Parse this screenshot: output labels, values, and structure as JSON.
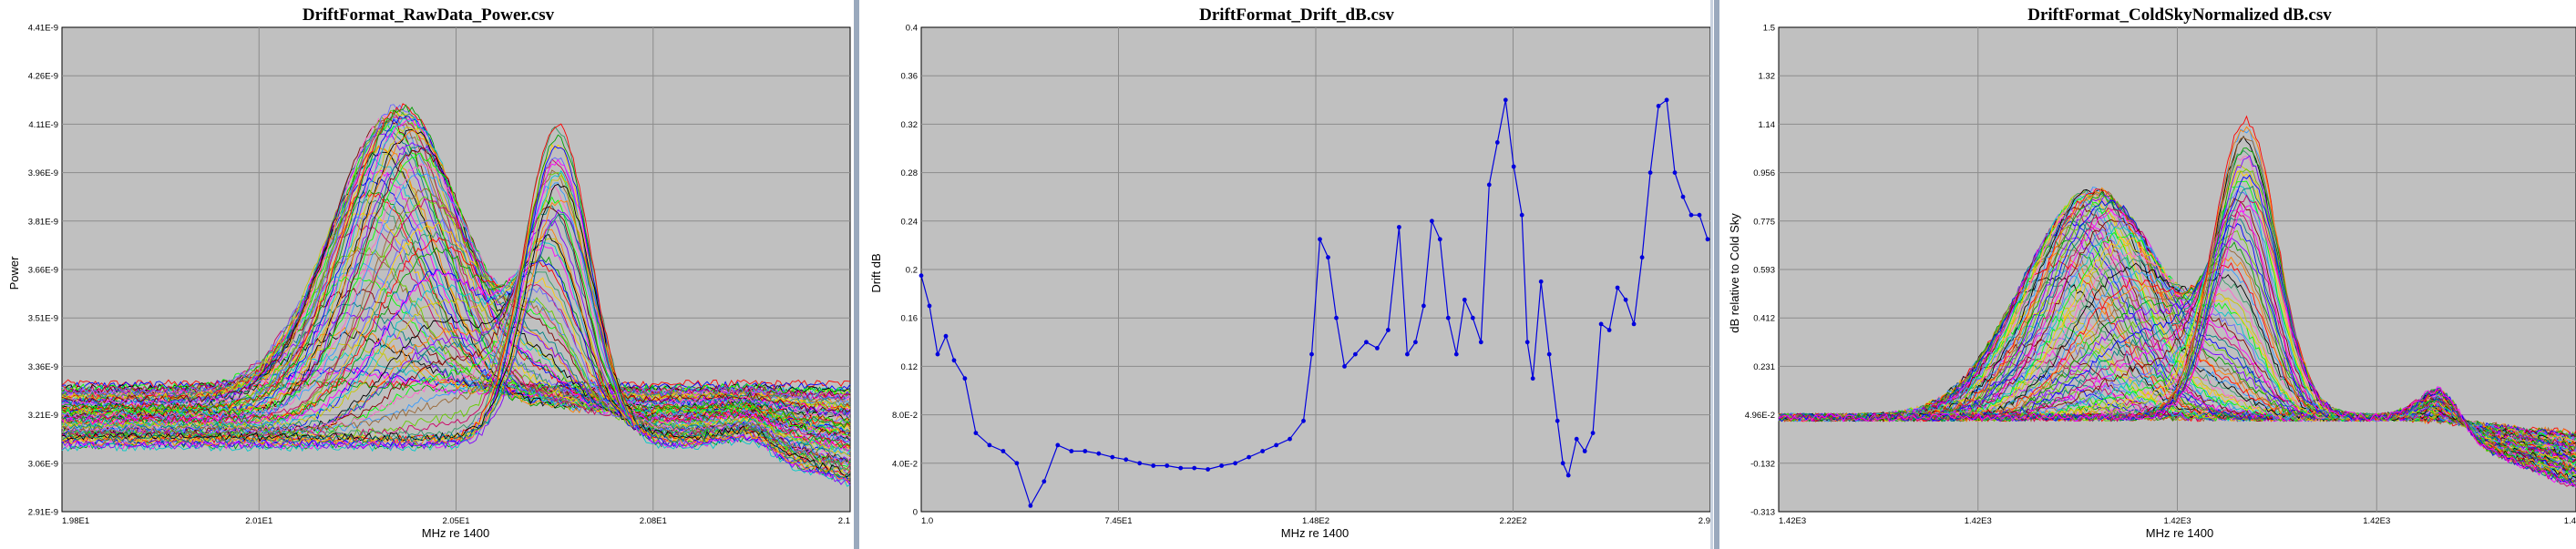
{
  "panels": [
    {
      "title": "DriftFormat_RawData_Power.csv",
      "xlabel": "MHz re 1400",
      "ylabel": "Power",
      "xticks": [
        "1.98E1",
        "2.01E1",
        "2.05E1",
        "2.08E1",
        "2.1"
      ],
      "yticks": [
        "4.41E-9",
        "4.26E-9",
        "4.11E-9",
        "3.96E-9",
        "3.81E-9",
        "3.66E-9",
        "3.51E-9",
        "3.36E-9",
        "3.21E-9",
        "3.06E-9",
        "2.91E-9"
      ]
    },
    {
      "title": "DriftFormat_Drift_dB.csv",
      "xlabel": "MHz re 1400",
      "ylabel": "Drift dB",
      "xticks": [
        "1.0",
        "7.45E1",
        "1.48E2",
        "2.22E2",
        "2.9"
      ],
      "yticks": [
        "0.4",
        "0.36",
        "0.32",
        "0.28",
        "0.24",
        "0.2",
        "0.16",
        "0.12",
        "8.0E-2",
        "4.0E-2",
        "0"
      ]
    },
    {
      "title": "DriftFormat_ColdSkyNormalized dB.csv",
      "xlabel": "MHz re 1400",
      "ylabel": "dB relative to Cold Sky",
      "xticks": [
        "1.42E3",
        "1.42E3",
        "1.42E3",
        "1.42E3",
        "1.4"
      ],
      "yticks": [
        "1.5",
        "1.32",
        "1.14",
        "0.956",
        "0.775",
        "0.593",
        "0.412",
        "0.231",
        "4.96E-2",
        "-0.132",
        "-0.313"
      ]
    }
  ],
  "chart_data": [
    {
      "type": "line",
      "title": "DriftFormat_RawData_Power.csv",
      "xlabel": "MHz re 1400",
      "ylabel": "Power",
      "xlim": [
        19.8,
        21.0
      ],
      "ylim": [
        2.91e-09,
        4.41e-09
      ],
      "grid": true,
      "series_count": 120,
      "description": "Many overlapping colored traces; peaks shift right over time",
      "features": [
        {
          "x": 20.25,
          "peak_y": 4.23e-09
        },
        {
          "x": 20.55,
          "peak_y": 4.3e-09
        },
        {
          "x": 20.85,
          "peak_y": 3.38e-09
        }
      ]
    },
    {
      "type": "line",
      "title": "DriftFormat_Drift_dB.csv",
      "xlabel": "MHz re 1400",
      "ylabel": "Drift dB",
      "xlim": [
        1,
        290
      ],
      "ylim": [
        0,
        0.4
      ],
      "grid": true,
      "series": [
        {
          "color": "#0000dd",
          "x": [
            1,
            4,
            7,
            10,
            13,
            17,
            21,
            26,
            31,
            36,
            41,
            46,
            51,
            56,
            61,
            66,
            71,
            76,
            81,
            86,
            91,
            96,
            101,
            106,
            111,
            116,
            121,
            126,
            131,
            136,
            141,
            144,
            147,
            150,
            153,
            156,
            160,
            164,
            168,
            172,
            176,
            179,
            182,
            185,
            188,
            191,
            194,
            197,
            200,
            203,
            206,
            209,
            212,
            215,
            218,
            221,
            223,
            225,
            228,
            231,
            234,
            236,
            238,
            241,
            244,
            247,
            250,
            253,
            256,
            259,
            262,
            265,
            268,
            271,
            274,
            277,
            280,
            283,
            286,
            289
          ],
          "y": [
            0.195,
            0.17,
            0.13,
            0.145,
            0.125,
            0.11,
            0.065,
            0.055,
            0.05,
            0.04,
            0.005,
            0.025,
            0.055,
            0.05,
            0.05,
            0.048,
            0.045,
            0.043,
            0.04,
            0.038,
            0.038,
            0.036,
            0.036,
            0.035,
            0.038,
            0.04,
            0.045,
            0.05,
            0.055,
            0.06,
            0.075,
            0.13,
            0.225,
            0.21,
            0.16,
            0.12,
            0.13,
            0.14,
            0.135,
            0.15,
            0.235,
            0.13,
            0.14,
            0.17,
            0.24,
            0.225,
            0.16,
            0.13,
            0.175,
            0.16,
            0.14,
            0.27,
            0.305,
            0.34,
            0.285,
            0.245,
            0.14,
            0.11,
            0.19,
            0.13,
            0.075,
            0.04,
            0.03,
            0.06,
            0.05,
            0.065,
            0.155,
            0.15,
            0.185,
            0.175,
            0.155,
            0.21,
            0.28,
            0.335,
            0.34,
            0.28,
            0.26,
            0.245,
            0.245,
            0.225
          ]
        }
      ]
    },
    {
      "type": "line",
      "title": "DriftFormat_ColdSkyNormalized dB.csv",
      "xlabel": "MHz re 1400",
      "ylabel": "dB relative to Cold Sky",
      "ylim": [
        -0.313,
        1.5
      ],
      "grid": true,
      "series_count": 120,
      "description": "Many overlapping colored traces normalized to cold sky baseline",
      "features": [
        {
          "x_frac": 0.34,
          "peak_y": 0.82
        },
        {
          "x_frac": 0.57,
          "peak_y": 1.17
        },
        {
          "x_frac": 0.83,
          "peak_y": 0.19
        }
      ]
    }
  ]
}
